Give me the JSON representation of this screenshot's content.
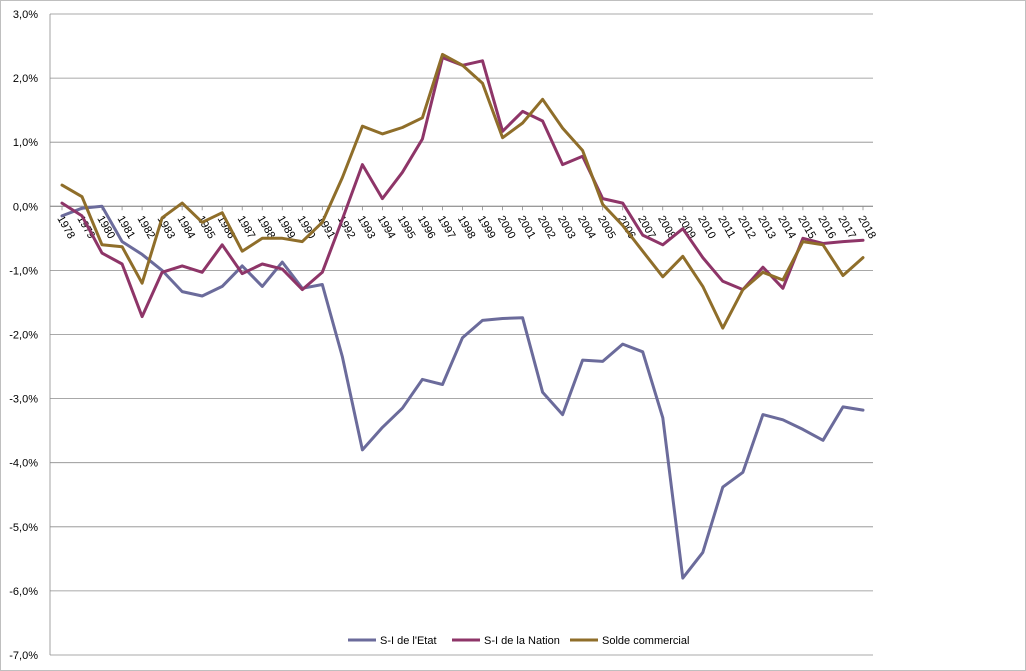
{
  "chart_data": {
    "type": "line",
    "title": "",
    "xlabel": "",
    "ylabel": "",
    "ylim": [
      -0.07,
      0.03
    ],
    "y_ticks": [
      "3,0%",
      "2,0%",
      "1,0%",
      "0,0%",
      "-1,0%",
      "-2,0%",
      "-3,0%",
      "-4,0%",
      "-5,0%",
      "-6,0%",
      "-7,0%"
    ],
    "grid": true,
    "legend_position": "bottom",
    "categories": [
      "1978",
      "1979",
      "1980",
      "1981",
      "1982",
      "1983",
      "1984",
      "1985",
      "1986",
      "1987",
      "1988",
      "1989",
      "1990",
      "1991",
      "1992",
      "1993",
      "1994",
      "1995",
      "1996",
      "1997",
      "1998",
      "1999",
      "2000",
      "2001",
      "2002",
      "2003",
      "2004",
      "2005",
      "2006",
      "2007",
      "2008",
      "2009",
      "2010",
      "2011",
      "2012",
      "2013",
      "2014",
      "2015",
      "2016",
      "2017",
      "2018"
    ],
    "series": [
      {
        "name": "S-I de l'Etat",
        "color": "#6b6b9b",
        "values": [
          -0.0015,
          -0.0003,
          0.0,
          -0.0055,
          -0.0075,
          -0.01,
          -0.0133,
          -0.014,
          -0.0125,
          -0.0093,
          -0.0125,
          -0.0087,
          -0.0128,
          -0.0122,
          -0.0235,
          -0.038,
          -0.0345,
          -0.0315,
          -0.027,
          -0.0278,
          -0.0205,
          -0.0178,
          -0.0175,
          -0.0174,
          -0.029,
          -0.0325,
          -0.024,
          -0.0242,
          -0.0215,
          -0.0227,
          -0.033,
          -0.058,
          -0.054,
          -0.0438,
          -0.0415,
          -0.0325,
          -0.0333,
          -0.0348,
          -0.0365,
          -0.0313,
          -0.0318
        ]
      },
      {
        "name": "S-I de la Nation",
        "color": "#8e3568",
        "values": [
          0.0005,
          -0.0015,
          -0.0073,
          -0.009,
          -0.0172,
          -0.0103,
          -0.0093,
          -0.0103,
          -0.006,
          -0.0105,
          -0.009,
          -0.0098,
          -0.013,
          -0.0103,
          -0.002,
          0.0065,
          0.0012,
          0.0053,
          0.0105,
          0.0232,
          0.022,
          0.0227,
          0.0117,
          0.0148,
          0.0133,
          0.0065,
          0.0078,
          0.0012,
          0.0005,
          -0.0045,
          -0.006,
          -0.0035,
          -0.008,
          -0.0117,
          -0.013,
          -0.0095,
          -0.0128,
          -0.005,
          -0.0058,
          -0.0055,
          -0.0053
        ]
      },
      {
        "name": "Solde commercial",
        "color": "#8f6e2a",
        "values": [
          0.0033,
          0.0015,
          -0.006,
          -0.0063,
          -0.012,
          -0.0018,
          0.0005,
          -0.0025,
          -0.001,
          -0.007,
          -0.005,
          -0.005,
          -0.0055,
          -0.0025,
          0.0045,
          0.0125,
          0.0113,
          0.0123,
          0.0138,
          0.0237,
          0.022,
          0.0192,
          0.0107,
          0.013,
          0.0167,
          0.0122,
          0.0087,
          0.0003,
          -0.003,
          -0.007,
          -0.011,
          -0.0078,
          -0.0125,
          -0.019,
          -0.013,
          -0.0103,
          -0.0115,
          -0.0055,
          -0.006,
          -0.0108,
          -0.008
        ]
      }
    ]
  }
}
